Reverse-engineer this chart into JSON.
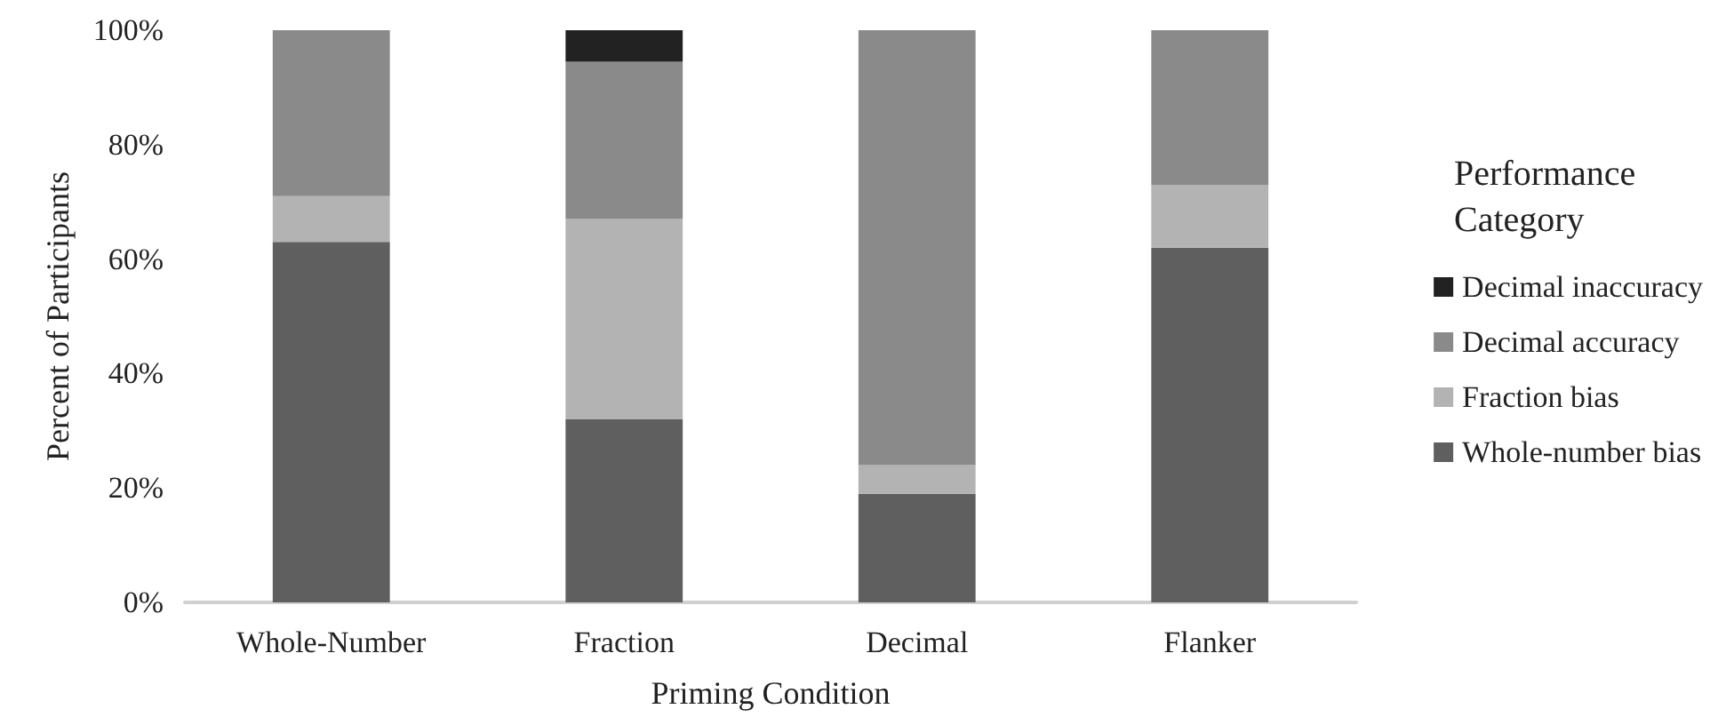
{
  "chart_data": {
    "type": "bar",
    "stacked": true,
    "xlabel": "Priming Condition",
    "ylabel": "Percent of Participants",
    "legend_title": "Performance Category",
    "categories": [
      "Whole-Number",
      "Fraction",
      "Decimal",
      "Flanker"
    ],
    "series": [
      {
        "name": "Whole-number bias",
        "color": "#5f5f5f",
        "values": [
          63,
          32,
          19,
          62
        ]
      },
      {
        "name": "Fraction bias",
        "color": "#b3b3b3",
        "values": [
          8,
          35,
          5,
          11
        ]
      },
      {
        "name": "Decimal accuracy",
        "color": "#8a8a8a",
        "values": [
          29,
          27.5,
          76,
          27
        ]
      },
      {
        "name": "Decimal inaccuracy",
        "color": "#222222",
        "values": [
          0,
          5.5,
          0,
          0
        ]
      }
    ],
    "ylim": [
      0,
      100
    ],
    "yticks": [
      {
        "value": 0,
        "label": "0%"
      },
      {
        "value": 20,
        "label": "20%"
      },
      {
        "value": 40,
        "label": "40%"
      },
      {
        "value": 60,
        "label": "60%"
      },
      {
        "value": 80,
        "label": "80%"
      },
      {
        "value": 100,
        "label": "100%"
      }
    ],
    "grid": false,
    "legend": "right"
  }
}
